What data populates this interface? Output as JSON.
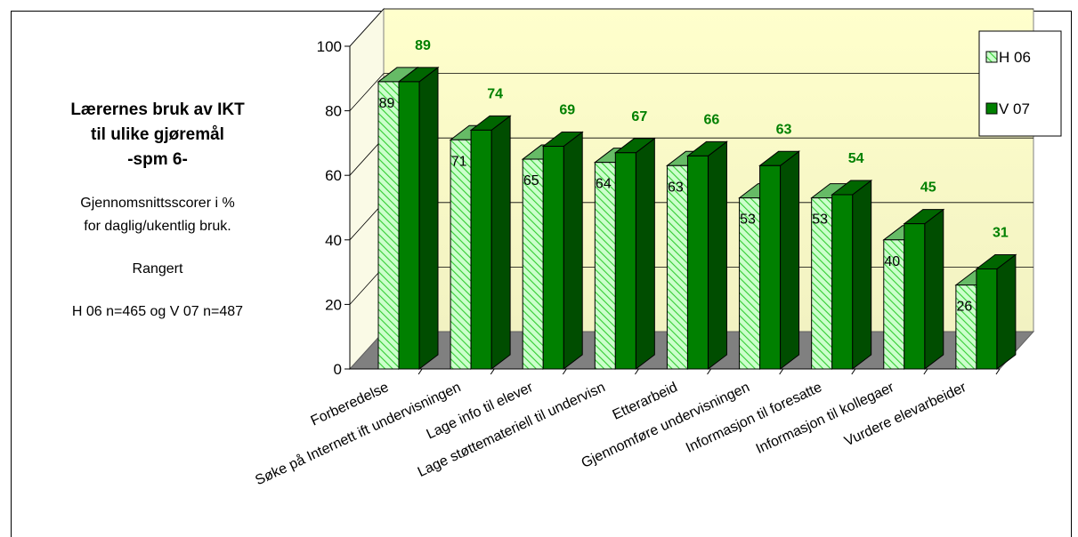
{
  "side_panel": {
    "title_lines": [
      "Lærernes bruk av IKT",
      "til ulike gjøremål",
      "-spm 6-"
    ],
    "subtitle_lines": [
      "Gjennomsnittsscorer i %",
      "for daglig/ukentlig bruk."
    ],
    "ranking_note": "Rangert",
    "sample_note": "H 06 n=465 og V 07 n=487"
  },
  "colors": {
    "series1_fill": "#ccffcc",
    "series1_hatch": "#33cc33",
    "series2_fill": "#008000",
    "series2_dark": "#004d00",
    "back_wall_top": "#ffffcc",
    "back_wall_bottom": "#f2f2c2",
    "floor": "#808080",
    "label_green": "#008000"
  },
  "chart_data": {
    "type": "bar",
    "style": "3d-clustered",
    "categories": [
      "Forberedelse",
      "Søke på Internett ift undervisningen",
      "Lage info til elever",
      "Lage støttemateriell til undervisn",
      "Etterarbeid",
      "Gjennomføre undervisningen",
      "Informasjon til foresatte",
      "Informasjon til kollegaer",
      "Vurdere elevarbeider"
    ],
    "series": [
      {
        "name": "H 06",
        "values": [
          89,
          71,
          65,
          64,
          63,
          53,
          53,
          40,
          26
        ]
      },
      {
        "name": "V 07",
        "values": [
          89,
          74,
          69,
          67,
          66,
          63,
          54,
          45,
          31
        ]
      }
    ],
    "ylim": [
      0,
      100
    ],
    "yticks": [
      0,
      20,
      40,
      60,
      80,
      100
    ],
    "grid": true,
    "legend_position": "top-right"
  }
}
